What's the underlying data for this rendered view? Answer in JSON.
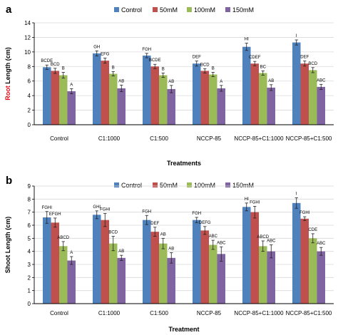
{
  "colors": {
    "series": [
      "#4f81bd",
      "#c0504d",
      "#9bbb59",
      "#8064a2"
    ],
    "root_word": "#e30613"
  },
  "chart_data": [
    {
      "type": "bar",
      "panel_letter": "a",
      "title": "",
      "ylabel_prefix": "Root",
      "ylabel_rest": " Length (cm)",
      "xlabel": "Treatments",
      "categories": [
        "Control",
        "C1:1000",
        "C1:500",
        "NCCP-85",
        "NCCP-85+C1:1000",
        "NCCP-85+C1:500"
      ],
      "ylim": [
        0,
        14
      ],
      "yticks": [
        0,
        2,
        4,
        6,
        8,
        10,
        12,
        14
      ],
      "legend_position": "top",
      "series": [
        {
          "name": "Control",
          "values": [
            7.9,
            9.8,
            9.5,
            8.4,
            10.7,
            11.3
          ],
          "errors": [
            0.3,
            0.35,
            0.3,
            0.35,
            0.5,
            0.35
          ],
          "labels": [
            "BCDE",
            "GH",
            "FGH",
            "DEF",
            "HI",
            "I"
          ]
        },
        {
          "name": "50mM",
          "values": [
            7.4,
            8.8,
            8.0,
            7.4,
            8.4,
            8.4
          ],
          "errors": [
            0.35,
            0.35,
            0.3,
            0.3,
            0.3,
            0.35
          ],
          "labels": [
            "BCD",
            "EFG",
            "BCDE",
            "BCD",
            "CDEF",
            "DEF"
          ]
        },
        {
          "name": "100mM",
          "values": [
            6.8,
            7.0,
            6.8,
            6.9,
            7.1,
            7.5
          ],
          "errors": [
            0.4,
            0.3,
            0.3,
            0.3,
            0.3,
            0.35
          ],
          "labels": [
            "B",
            "B",
            "B",
            "B",
            "BC",
            "BCD"
          ]
        },
        {
          "name": "150mM",
          "values": [
            4.6,
            5.0,
            4.9,
            5.0,
            5.1,
            5.2
          ],
          "errors": [
            0.35,
            0.45,
            0.5,
            0.4,
            0.4,
            0.35
          ],
          "labels": [
            "A",
            "AB",
            "AB",
            "A",
            "AB",
            "ABC"
          ]
        }
      ]
    },
    {
      "type": "bar",
      "panel_letter": "b",
      "title": "",
      "ylabel_prefix": "",
      "ylabel_rest": "Shoot Length (cm)",
      "xlabel": "Treatment",
      "categories": [
        "Control",
        "C1:1000",
        "C1:500",
        "NCCP-85",
        "NCCP-85+C1:1000",
        "NCCP-85+C1:500"
      ],
      "ylim": [
        0,
        9
      ],
      "yticks": [
        0,
        1,
        2,
        3,
        4,
        5,
        6,
        7,
        8,
        9
      ],
      "legend_position": "top",
      "series": [
        {
          "name": "Control",
          "values": [
            6.6,
            6.8,
            6.4,
            6.4,
            7.4,
            7.7
          ],
          "errors": [
            0.45,
            0.3,
            0.35,
            0.2,
            0.3,
            0.4
          ],
          "labels": [
            "FGHI",
            "GHI",
            "FGH",
            "FGH",
            "HI",
            "I"
          ]
        },
        {
          "name": "50mM",
          "values": [
            6.2,
            6.4,
            5.5,
            5.6,
            7.0,
            6.5
          ],
          "errors": [
            0.35,
            0.5,
            0.35,
            0.3,
            0.45,
            0.15
          ],
          "labels": [
            "EFGH",
            "FGHI",
            "DEF",
            "DEFG",
            "FGHI",
            "FGHI"
          ]
        },
        {
          "name": "100mM",
          "values": [
            4.4,
            4.6,
            4.6,
            4.5,
            4.4,
            5.0
          ],
          "errors": [
            0.35,
            0.55,
            0.4,
            0.35,
            0.4,
            0.35
          ],
          "labels": [
            "ABCD",
            "BCD",
            "AB",
            "ABC",
            "ABCD",
            "CDE"
          ]
        },
        {
          "name": "150mM",
          "values": [
            3.3,
            3.5,
            3.5,
            3.8,
            4.0,
            4.0
          ],
          "errors": [
            0.3,
            0.2,
            0.4,
            0.55,
            0.5,
            0.3
          ],
          "labels": [
            "A",
            "AB",
            "AB",
            "ABC",
            "ABC",
            "ABC"
          ]
        }
      ]
    }
  ]
}
